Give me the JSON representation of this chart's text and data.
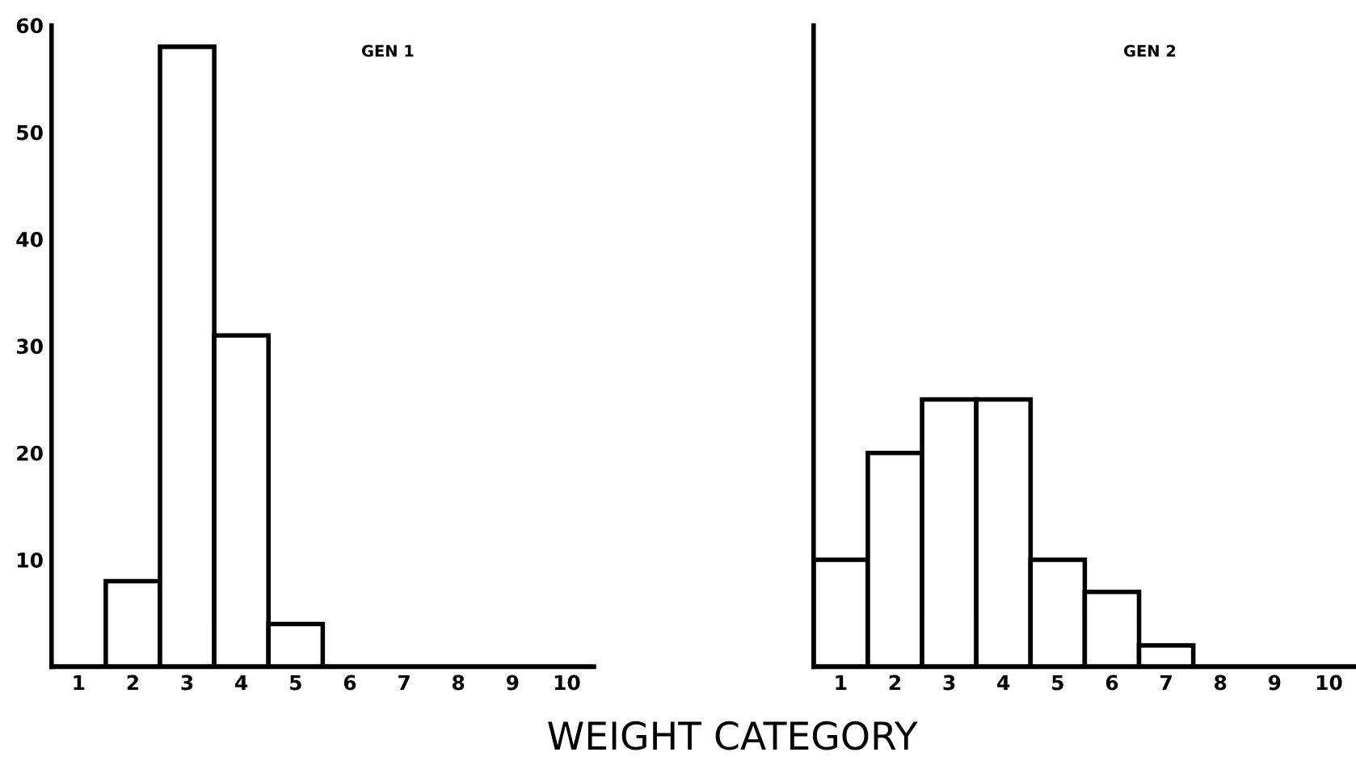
{
  "chart_data": [
    {
      "type": "bar",
      "title": "GEN 1",
      "xlabel": "WEIGHT CATEGORY",
      "categories": [
        "1",
        "2",
        "3",
        "4",
        "5",
        "6",
        "7",
        "8",
        "9",
        "10"
      ],
      "values": [
        0,
        8,
        58,
        31,
        4,
        0,
        0,
        0,
        0,
        0
      ],
      "color": "#ffffff",
      "ylim": [
        0,
        60
      ],
      "yticks": [
        10,
        20,
        30,
        40,
        50,
        60
      ],
      "grid": false
    },
    {
      "type": "bar",
      "title": "GEN 2",
      "categories": [
        "1",
        "2",
        "3",
        "4",
        "5",
        "6",
        "7",
        "8",
        "9",
        "10"
      ],
      "values": [
        10,
        20,
        25,
        25,
        10,
        7,
        2,
        0,
        0,
        0
      ],
      "color": "#ffffff",
      "ylim": [
        0,
        60
      ],
      "yticks": [
        10,
        20,
        30,
        40,
        50,
        60
      ],
      "tick_labels": "x",
      "grid": false
    }
  ]
}
